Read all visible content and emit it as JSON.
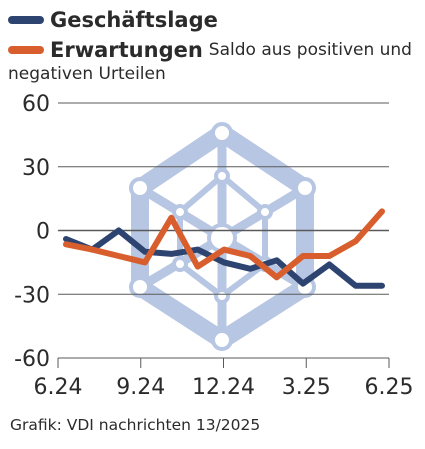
{
  "chart_data": {
    "type": "line",
    "x_labels": [
      "6.24",
      "9.24",
      "12.24",
      "3.25",
      "6.25"
    ],
    "note_line1": "Saldo aus positiven und",
    "note_line2": "negativen Urteilen",
    "ylim": [
      -60,
      60
    ],
    "y_ticks": [
      60,
      30,
      0,
      -30,
      -60
    ],
    "y_tick_labels": [
      "60",
      "30",
      "0",
      "-30",
      "-60"
    ],
    "grid": true,
    "series": [
      {
        "name": "Geschäftslage",
        "color": "#2e4470",
        "values": [
          -4,
          -9,
          0,
          -10,
          -11,
          -9,
          -15,
          -18,
          -14,
          -25,
          -16,
          -26,
          -26
        ]
      },
      {
        "name": "Erwartungen",
        "color": "#d95e2e",
        "values": [
          -6.5,
          -9,
          -12,
          -15,
          6,
          -17,
          -9,
          -12,
          -22,
          -12,
          -12,
          -5,
          9
        ]
      }
    ]
  },
  "footer": {
    "source": "Grafik: VDI nachrichten 13/2025"
  },
  "watermark_color": "#b7c6e2"
}
